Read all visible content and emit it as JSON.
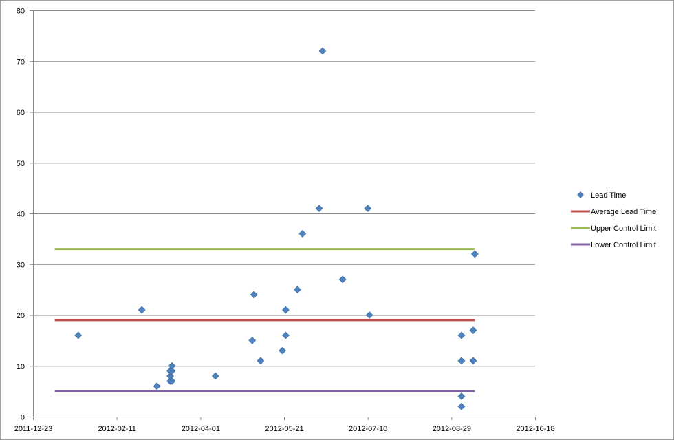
{
  "chart_data": {
    "type": "scatter",
    "title": "",
    "xlabel": "",
    "ylabel": "",
    "xlim": [
      "2011-12-23",
      "2012-10-18"
    ],
    "ylim": [
      0,
      80
    ],
    "x_ticks": [
      "2011-12-23",
      "2012-02-11",
      "2012-04-01",
      "2012-05-21",
      "2012-07-10",
      "2012-08-29",
      "2012-10-18"
    ],
    "y_ticks": [
      0,
      10,
      20,
      30,
      40,
      50,
      60,
      70,
      80
    ],
    "grid": "horizontal",
    "legend_position": "right",
    "series": [
      {
        "name": "Lead Time",
        "kind": "scatter",
        "marker": "diamond",
        "color": "#4f81bd",
        "points": [
          {
            "x": "2012-01-19",
            "y": 16
          },
          {
            "x": "2012-02-26",
            "y": 21
          },
          {
            "x": "2012-03-06",
            "y": 6
          },
          {
            "x": "2012-03-14",
            "y": 7
          },
          {
            "x": "2012-03-14",
            "y": 8
          },
          {
            "x": "2012-03-14",
            "y": 9
          },
          {
            "x": "2012-03-15",
            "y": 7
          },
          {
            "x": "2012-03-15",
            "y": 9
          },
          {
            "x": "2012-03-15",
            "y": 10
          },
          {
            "x": "2012-04-10",
            "y": 8
          },
          {
            "x": "2012-05-02",
            "y": 15
          },
          {
            "x": "2012-05-03",
            "y": 24
          },
          {
            "x": "2012-05-07",
            "y": 11
          },
          {
            "x": "2012-05-20",
            "y": 13
          },
          {
            "x": "2012-05-22",
            "y": 16
          },
          {
            "x": "2012-05-22",
            "y": 21
          },
          {
            "x": "2012-05-29",
            "y": 25
          },
          {
            "x": "2012-06-01",
            "y": 36
          },
          {
            "x": "2012-06-11",
            "y": 41
          },
          {
            "x": "2012-06-13",
            "y": 72
          },
          {
            "x": "2012-06-25",
            "y": 27
          },
          {
            "x": "2012-07-10",
            "y": 41
          },
          {
            "x": "2012-07-11",
            "y": 20
          },
          {
            "x": "2012-09-04",
            "y": 2
          },
          {
            "x": "2012-09-04",
            "y": 4
          },
          {
            "x": "2012-09-04",
            "y": 11
          },
          {
            "x": "2012-09-04",
            "y": 16
          },
          {
            "x": "2012-09-11",
            "y": 11
          },
          {
            "x": "2012-09-11",
            "y": 17
          },
          {
            "x": "2012-09-12",
            "y": 32
          }
        ]
      },
      {
        "name": "Average Lead Time",
        "kind": "line",
        "color": "#c0504d",
        "points": [
          {
            "x": "2012-01-05",
            "y": 19
          },
          {
            "x": "2012-09-12",
            "y": 19
          }
        ]
      },
      {
        "name": "Upper Control Limit",
        "kind": "line",
        "color": "#9bbb59",
        "points": [
          {
            "x": "2012-01-05",
            "y": 33
          },
          {
            "x": "2012-09-12",
            "y": 33
          }
        ]
      },
      {
        "name": "Lower Control Limit",
        "kind": "line",
        "color": "#8064a2",
        "points": [
          {
            "x": "2012-01-05",
            "y": 5
          },
          {
            "x": "2012-09-12",
            "y": 5
          }
        ]
      }
    ],
    "colors": {
      "grid": "#868686",
      "axis": "#868686"
    }
  }
}
